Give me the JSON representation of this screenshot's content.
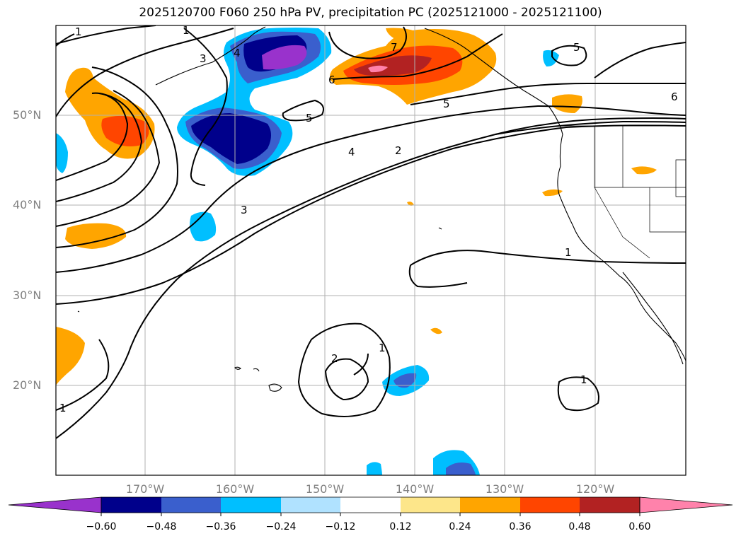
{
  "title": "2025120700 F060 250 hPa PV, precipitation PC (2025121000 - 2025121100)",
  "lat_labels": [
    "50°N",
    "40°N",
    "30°N",
    "20°N"
  ],
  "lon_labels": [
    "170°W",
    "160°W",
    "150°W",
    "140°W",
    "130°W",
    "120°W"
  ],
  "contour_labels": [
    "1",
    "1",
    "3",
    "4",
    "5",
    "4",
    "2",
    "3",
    "6",
    "7",
    "5",
    "5",
    "6",
    "1",
    "2",
    "1",
    "1",
    "1"
  ],
  "colorbar": {
    "ticks": [
      "−0.60",
      "−0.48",
      "−0.36",
      "−0.24",
      "−0.12",
      "0.12",
      "0.24",
      "0.36",
      "0.48",
      "0.60"
    ],
    "colors": [
      "#9932cc",
      "#00008b",
      "#3a5fcd",
      "#00bfff",
      "#b0e2ff",
      "#ffffff",
      "#fde68a",
      "#ffa500",
      "#ff4500",
      "#b22222",
      "#ff82ab"
    ]
  },
  "colors": {
    "purple": "#9932cc",
    "navy": "#00008b",
    "royal": "#3a5fcd",
    "cyan": "#00bfff",
    "light_blue": "#b0e2ff",
    "yellow": "#fde68a",
    "orange": "#ffa500",
    "orangered": "#ff4500",
    "firebrick": "#b22222",
    "pink": "#ff82ab",
    "grid": "#b0b0b0",
    "tick_label": "#808080"
  }
}
